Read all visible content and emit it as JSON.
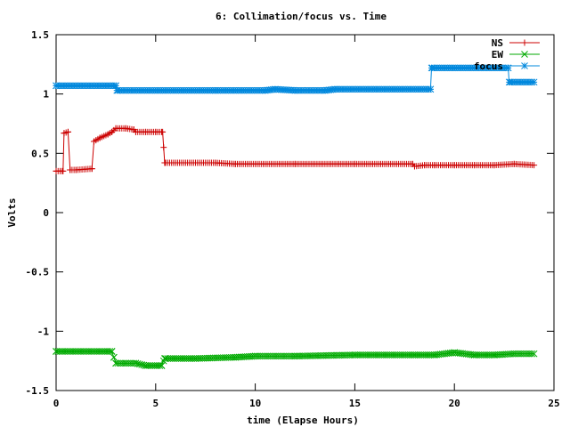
{
  "chart_data": {
    "type": "line",
    "title": "6: Collimation/focus vs. Time",
    "xlabel": "time (Elapse Hours)",
    "ylabel": "Volts",
    "xlim": [
      0,
      25
    ],
    "ylim": [
      -1.5,
      1.5
    ],
    "xticks": [
      "0",
      "5",
      "10",
      "15",
      "20",
      "25"
    ],
    "yticks": [
      "-1.5",
      "-1",
      "-0.5",
      "0",
      "0.5",
      "1",
      "1.5"
    ],
    "grid": false,
    "legend_position": "top-right",
    "series": [
      {
        "name": "NS",
        "color": "#cc0000",
        "marker": "plus",
        "points": [
          [
            0.0,
            0.35
          ],
          [
            0.35,
            0.35
          ],
          [
            0.4,
            0.67
          ],
          [
            0.6,
            0.68
          ],
          [
            0.7,
            0.36
          ],
          [
            1.0,
            0.36
          ],
          [
            1.8,
            0.37
          ],
          [
            1.9,
            0.6
          ],
          [
            2.2,
            0.63
          ],
          [
            2.6,
            0.66
          ],
          [
            2.8,
            0.68
          ],
          [
            3.0,
            0.71
          ],
          [
            3.5,
            0.71
          ],
          [
            3.9,
            0.7
          ],
          [
            4.0,
            0.68
          ],
          [
            4.5,
            0.68
          ],
          [
            5.0,
            0.68
          ],
          [
            5.35,
            0.68
          ],
          [
            5.45,
            0.42
          ],
          [
            8.0,
            0.42
          ],
          [
            9.0,
            0.41
          ],
          [
            12.0,
            0.41
          ],
          [
            15.0,
            0.41
          ],
          [
            17.9,
            0.41
          ],
          [
            18.0,
            0.39
          ],
          [
            18.5,
            0.4
          ],
          [
            19.0,
            0.4
          ],
          [
            20.0,
            0.4
          ],
          [
            21.0,
            0.4
          ],
          [
            22.0,
            0.4
          ],
          [
            23.0,
            0.41
          ],
          [
            24.0,
            0.4
          ]
        ]
      },
      {
        "name": "EW",
        "color": "#00aa00",
        "marker": "cross",
        "points": [
          [
            0.0,
            -1.17
          ],
          [
            2.8,
            -1.17
          ],
          [
            2.9,
            -1.22
          ],
          [
            3.0,
            -1.27
          ],
          [
            3.5,
            -1.27
          ],
          [
            4.0,
            -1.27
          ],
          [
            4.5,
            -1.29
          ],
          [
            5.3,
            -1.29
          ],
          [
            5.45,
            -1.23
          ],
          [
            7.0,
            -1.23
          ],
          [
            9.0,
            -1.22
          ],
          [
            10.0,
            -1.21
          ],
          [
            12.0,
            -1.21
          ],
          [
            15.0,
            -1.2
          ],
          [
            18.0,
            -1.2
          ],
          [
            19.0,
            -1.2
          ],
          [
            20.0,
            -1.18
          ],
          [
            21.0,
            -1.2
          ],
          [
            22.0,
            -1.2
          ],
          [
            23.0,
            -1.19
          ],
          [
            24.0,
            -1.19
          ]
        ]
      },
      {
        "name": "focus",
        "color": "#0088dd",
        "marker": "star",
        "points": [
          [
            0.0,
            1.07
          ],
          [
            3.0,
            1.07
          ],
          [
            3.05,
            1.03
          ],
          [
            8.0,
            1.03
          ],
          [
            10.5,
            1.03
          ],
          [
            11.0,
            1.04
          ],
          [
            12.0,
            1.03
          ],
          [
            13.5,
            1.03
          ],
          [
            14.0,
            1.04
          ],
          [
            18.8,
            1.04
          ],
          [
            18.85,
            1.22
          ],
          [
            22.7,
            1.22
          ],
          [
            22.75,
            1.1
          ],
          [
            24.0,
            1.1
          ]
        ]
      }
    ]
  }
}
